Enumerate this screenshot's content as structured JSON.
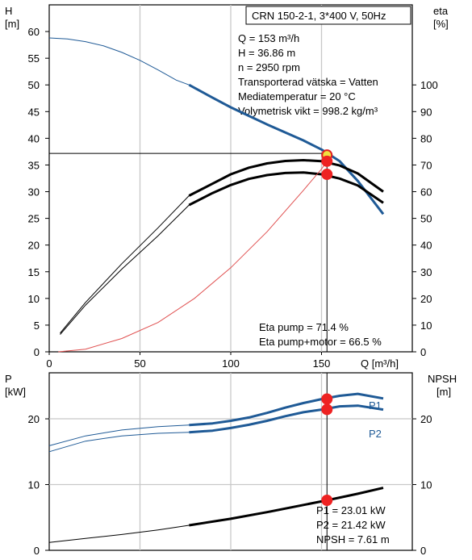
{
  "chart_data": [
    {
      "type": "line",
      "title": "CRN 150-2-1, 3*400 V, 50Hz",
      "xlabel": "Q [m³/h]",
      "ylabel": "H [m]",
      "ylabel_unit": "[m]",
      "ylabel_name": "H",
      "y2label_name": "eta",
      "y2label_unit": "[%]",
      "xlim": [
        0,
        200
      ],
      "ylim": [
        0,
        65
      ],
      "y2lim": [
        0,
        130
      ],
      "x_ticks": [
        0,
        50,
        100,
        150
      ],
      "y_ticks": [
        0,
        5,
        10,
        15,
        20,
        25,
        30,
        35,
        40,
        45,
        50,
        55,
        60
      ],
      "y2_ticks": [
        0,
        10,
        20,
        30,
        40,
        50,
        60,
        70,
        80,
        90,
        100
      ],
      "grid": true,
      "info_lines": [
        "Q = 153 m³/h",
        "H = 36.86 m",
        "n = 2950 rpm",
        "Transporterad vätska = Vatten",
        "Mediatemperatur = 20 °C",
        "Volymetrisk vikt = 998.2 kg/m³"
      ],
      "annotations": [
        "Eta pump = 71.4 %",
        "Eta pump+motor = 66.5 %"
      ],
      "series": [
        {
          "id": "head",
          "axis": "left",
          "color": "#1f5a96",
          "x": [
            0,
            10,
            20,
            30,
            40,
            50,
            60,
            70,
            77,
            90,
            100,
            110,
            120,
            130,
            140,
            150,
            160,
            170,
            184
          ],
          "y": [
            58.8,
            58.6,
            58.1,
            57.3,
            56.1,
            54.6,
            52.8,
            50.9,
            50.0,
            47.6,
            45.8,
            44.2,
            42.6,
            41.1,
            39.6,
            37.9,
            35.7,
            32.0,
            25.8
          ],
          "thick_from": 77
        },
        {
          "id": "eta-pump",
          "axis": "right",
          "color": "#000000",
          "x": [
            6,
            20,
            40,
            60,
            77,
            90,
            100,
            110,
            120,
            130,
            140,
            150,
            160,
            170,
            184
          ],
          "y": [
            7.0,
            18.5,
            33.0,
            46.5,
            58.5,
            63.0,
            66.5,
            69.0,
            70.6,
            71.5,
            71.8,
            71.4,
            69.8,
            66.8,
            60.0
          ],
          "thick_from": 77
        },
        {
          "id": "eta-pump-motor",
          "axis": "right",
          "color": "#000000",
          "x": [
            6,
            20,
            40,
            60,
            77,
            90,
            100,
            110,
            120,
            130,
            140,
            150,
            160,
            170,
            184
          ],
          "y": [
            6.5,
            17.5,
            31.0,
            43.5,
            55.0,
            59.5,
            62.5,
            64.8,
            66.2,
            67.0,
            67.2,
            66.5,
            64.9,
            62.3,
            55.8
          ],
          "thick_from": 77
        },
        {
          "id": "eta-red",
          "axis": "right",
          "color": "#e05050",
          "x": [
            5,
            20,
            40,
            60,
            80,
            100,
            120,
            140,
            150,
            153
          ],
          "y": [
            0,
            1.0,
            5.0,
            11.0,
            20.0,
            31.5,
            45.0,
            60.5,
            68.5,
            71.4
          ],
          "thick_from": null
        }
      ],
      "crosshair": {
        "x": 153,
        "y": 36.86
      },
      "operating_points": [
        {
          "axis": "left",
          "x": 153,
          "y": 36.86,
          "color": "#f0e040",
          "outline": "#e02020"
        },
        {
          "axis": "right",
          "x": 153,
          "y": 71.4,
          "color": "#ee2222",
          "outline": "#ee2222"
        },
        {
          "axis": "right",
          "x": 153,
          "y": 66.5,
          "color": "#ee2222",
          "outline": "#ee2222"
        }
      ]
    },
    {
      "type": "line",
      "xlabel": "",
      "ylabel_name": "P",
      "ylabel_unit": "[kW]",
      "y2label_name": "NPSH",
      "y2label_unit": "[m]",
      "xlim": [
        0,
        200
      ],
      "ylim": [
        0,
        27
      ],
      "y2lim": [
        0,
        27
      ],
      "y_ticks": [
        0,
        10,
        20
      ],
      "y2_ticks": [
        0,
        10,
        20
      ],
      "grid": true,
      "annotations": [
        "P1 = 23.01 kW",
        "P2 = 21.42 kW",
        "NPSH = 7.61 m"
      ],
      "series": [
        {
          "id": "p1",
          "name": "P1",
          "axis": "left",
          "color": "#1f5a96",
          "x": [
            0,
            20,
            40,
            60,
            77,
            90,
            100,
            110,
            120,
            130,
            140,
            150,
            160,
            170,
            184
          ],
          "y": [
            15.9,
            17.4,
            18.3,
            18.8,
            19.05,
            19.3,
            19.7,
            20.2,
            20.9,
            21.7,
            22.4,
            23.0,
            23.5,
            23.8,
            23.1
          ],
          "thick_from": 77
        },
        {
          "id": "p2",
          "name": "P2",
          "axis": "left",
          "color": "#1f5a96",
          "x": [
            0,
            20,
            40,
            60,
            77,
            90,
            100,
            110,
            120,
            130,
            140,
            150,
            160,
            170,
            184
          ],
          "y": [
            15.0,
            16.6,
            17.4,
            17.8,
            17.95,
            18.2,
            18.6,
            19.1,
            19.7,
            20.4,
            21.0,
            21.4,
            21.9,
            22.0,
            21.4
          ],
          "thick_from": 77
        },
        {
          "id": "npsh",
          "name": "NPSH",
          "axis": "right",
          "color": "#000000",
          "x": [
            0,
            20,
            40,
            60,
            77,
            100,
            120,
            140,
            153,
            170,
            184
          ],
          "y": [
            1.2,
            1.8,
            2.4,
            3.1,
            3.8,
            4.8,
            5.8,
            6.9,
            7.61,
            8.6,
            9.5
          ],
          "thick_from": 77
        }
      ],
      "crosshair": {
        "x": 153
      },
      "operating_points": [
        {
          "axis": "left",
          "x": 153,
          "y": 23.01,
          "color": "#ee2222",
          "outline": "#ee2222"
        },
        {
          "axis": "left",
          "x": 153,
          "y": 21.42,
          "color": "#ee2222",
          "outline": "#ee2222"
        },
        {
          "axis": "right",
          "x": 153,
          "y": 7.61,
          "color": "#ee2222",
          "outline": "#ee2222"
        }
      ]
    }
  ]
}
